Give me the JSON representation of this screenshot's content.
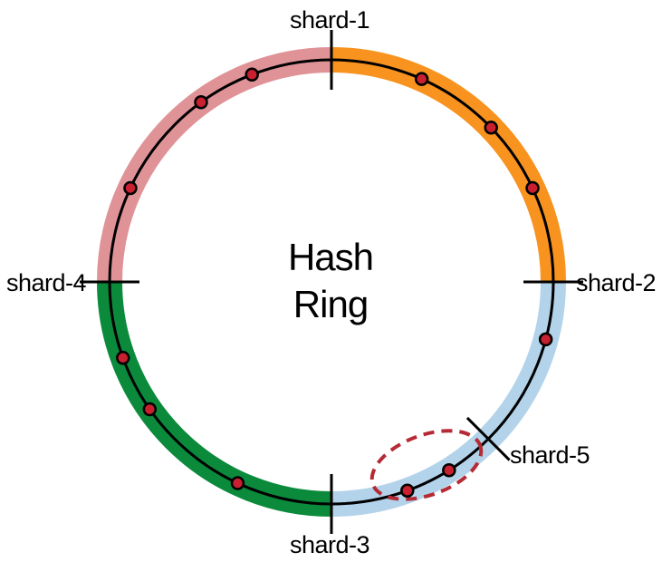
{
  "diagram": {
    "center_label": [
      "Hash",
      "Ring"
    ],
    "colors": {
      "shard_1": "#f7931e",
      "shard_2": "#b3d3ea",
      "shard_3": "#0b8a3c",
      "shard_4": "#df9397",
      "ring_line": "#000000",
      "node_fill": "#c8202e",
      "new_shard_label": "#a6a6a6",
      "highlight_ellipse": "#b52a34"
    },
    "shards": [
      {
        "id": "shard-1",
        "label": "shard-1",
        "angle_deg": 0
      },
      {
        "id": "shard-2",
        "label": "shard-2",
        "angle_deg": 90
      },
      {
        "id": "shard-3",
        "label": "shard-3",
        "angle_deg": 180
      },
      {
        "id": "shard-4",
        "label": "shard-4",
        "angle_deg": 270
      },
      {
        "id": "shard-5",
        "label": "shard-5",
        "angle_deg": 135,
        "added": true
      }
    ],
    "segments": [
      {
        "owner": "shard-1",
        "from_deg": 270,
        "to_deg": 360,
        "color_key": "shard_4"
      },
      {
        "owner": "shard-2",
        "from_deg": 0,
        "to_deg": 90,
        "color_key": "shard_1"
      },
      {
        "owner": "shard-3",
        "from_deg": 90,
        "to_deg": 180,
        "color_key": "shard_2"
      },
      {
        "owner": "shard-4",
        "from_deg": 180,
        "to_deg": 270,
        "color_key": "shard_3"
      }
    ],
    "key_angles_deg": [
      24,
      46,
      65,
      105,
      148,
      160,
      205,
      235,
      250,
      295,
      324,
      339
    ],
    "highlighted_keys_deg": [
      148,
      160
    ]
  }
}
